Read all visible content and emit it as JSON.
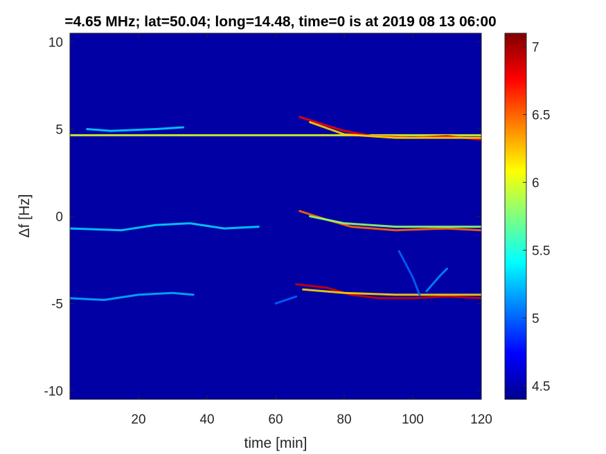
{
  "chart_data": {
    "type": "heatmap",
    "title": "=4.65 MHz;  lat=50.04; long=14.48, time=0 is at 2019 08 13 06:00",
    "xlabel": "time [min]",
    "ylabel": "Δf [Hz]",
    "xlim": [
      0,
      120
    ],
    "ylim": [
      -10.5,
      10.5
    ],
    "xticks": [
      20,
      40,
      60,
      80,
      100,
      120
    ],
    "xtick_labels": [
      "20",
      "40",
      "60",
      "80",
      "100",
      "120"
    ],
    "yticks": [
      -10,
      -5,
      0,
      5,
      10
    ],
    "ytick_labels": [
      "-10",
      "-5",
      "0",
      "5",
      "10"
    ],
    "colormap": "jet",
    "clim": [
      4.4,
      7.1
    ],
    "colorbar_ticks": [
      4.5,
      5,
      5.5,
      6,
      6.5,
      7
    ],
    "colorbar_tick_labels": [
      "4.5",
      "5",
      "5.5",
      "6",
      "6.5",
      "7"
    ],
    "background_value": 4.5,
    "traces": [
      {
        "points": [
          [
            0,
            4.65
          ],
          [
            20,
            4.65
          ],
          [
            40,
            4.65
          ],
          [
            60,
            4.65
          ],
          [
            80,
            4.65
          ],
          [
            100,
            4.65
          ],
          [
            120,
            4.65
          ]
        ],
        "value": 6.0
      },
      {
        "points": [
          [
            5,
            5.0
          ],
          [
            12,
            4.9
          ],
          [
            25,
            5.0
          ],
          [
            33,
            5.1
          ]
        ],
        "value": 5.3
      },
      {
        "points": [
          [
            67,
            5.7
          ],
          [
            75,
            5.2
          ],
          [
            80,
            4.9
          ],
          [
            88,
            4.6
          ],
          [
            100,
            4.5
          ],
          [
            110,
            4.6
          ],
          [
            120,
            4.4
          ]
        ],
        "value": 6.8
      },
      {
        "points": [
          [
            70,
            5.4
          ],
          [
            80,
            4.7
          ],
          [
            95,
            4.5
          ],
          [
            120,
            4.5
          ]
        ],
        "value": 6.2
      },
      {
        "points": [
          [
            0,
            -0.7
          ],
          [
            15,
            -0.8
          ],
          [
            25,
            -0.5
          ],
          [
            35,
            -0.4
          ],
          [
            45,
            -0.7
          ],
          [
            55,
            -0.6
          ]
        ],
        "value": 5.3
      },
      {
        "points": [
          [
            67,
            0.3
          ],
          [
            75,
            -0.2
          ],
          [
            82,
            -0.6
          ],
          [
            95,
            -0.8
          ],
          [
            110,
            -0.7
          ],
          [
            120,
            -0.8
          ]
        ],
        "value": 6.5
      },
      {
        "points": [
          [
            70,
            0.0
          ],
          [
            80,
            -0.4
          ],
          [
            95,
            -0.6
          ],
          [
            120,
            -0.6
          ]
        ],
        "value": 5.8
      },
      {
        "points": [
          [
            0,
            -4.7
          ],
          [
            10,
            -4.8
          ],
          [
            20,
            -4.5
          ],
          [
            30,
            -4.4
          ],
          [
            36,
            -4.5
          ]
        ],
        "value": 5.2
      },
      {
        "points": [
          [
            60,
            -5.0
          ],
          [
            66,
            -4.6
          ]
        ],
        "value": 5.0
      },
      {
        "points": [
          [
            66,
            -3.9
          ],
          [
            75,
            -4.1
          ],
          [
            82,
            -4.5
          ],
          [
            90,
            -4.7
          ],
          [
            100,
            -4.7
          ],
          [
            110,
            -4.6
          ],
          [
            120,
            -4.7
          ]
        ],
        "value": 6.9
      },
      {
        "points": [
          [
            68,
            -4.2
          ],
          [
            80,
            -4.4
          ],
          [
            95,
            -4.5
          ],
          [
            120,
            -4.5
          ]
        ],
        "value": 6.2
      },
      {
        "points": [
          [
            96,
            -2.0
          ],
          [
            100,
            -3.5
          ],
          [
            102,
            -4.5
          ]
        ],
        "value": 5.0
      },
      {
        "points": [
          [
            104,
            -4.3
          ],
          [
            108,
            -3.4
          ],
          [
            110,
            -3.0
          ]
        ],
        "value": 5.1
      }
    ]
  }
}
